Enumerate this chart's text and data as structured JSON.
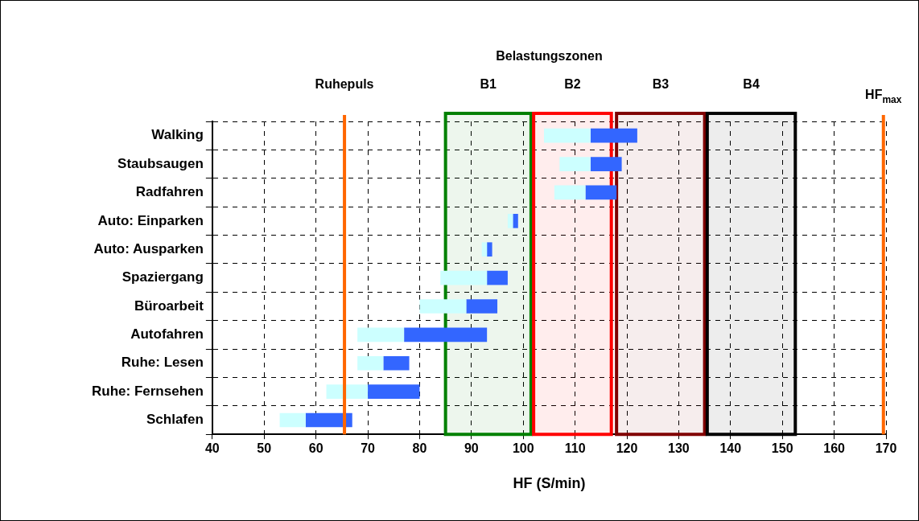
{
  "chart_data": {
    "type": "bar",
    "orientation": "horizontal",
    "title": "Belastungszonen",
    "xlabel": "HF (S/min)",
    "categories": [
      "Walking",
      "Staubsaugen",
      "Radfahren",
      "Auto: Einparken",
      "Auto: Ausparken",
      "Spaziergang",
      "Büroarbeit",
      "Autofahren",
      "Ruhe: Lesen",
      "Ruhe: Fernsehen",
      "Schlafen"
    ],
    "series": [
      {
        "color": "#ccffff",
        "base": [
          104,
          107,
          106,
          97,
          92,
          84,
          80,
          68,
          68,
          62,
          53
        ],
        "values": [
          9,
          6,
          6,
          1,
          1,
          9,
          9,
          9,
          5,
          8,
          5
        ]
      },
      {
        "color": "#3366ff",
        "base": [
          113,
          113,
          112,
          98,
          93,
          93,
          89,
          77,
          73,
          70,
          58
        ],
        "values": [
          9,
          6,
          6,
          1,
          1,
          4,
          6,
          16,
          5,
          10,
          9
        ]
      }
    ],
    "xlim": [
      40,
      170
    ],
    "xticks": [
      40,
      50,
      60,
      70,
      80,
      90,
      100,
      110,
      120,
      130,
      140,
      150,
      160,
      170
    ],
    "grid": true,
    "legend": false,
    "ref_lines": [
      {
        "axis": "x",
        "value": 65.5,
        "label": "Ruhepuls",
        "color": "#ff6600"
      },
      {
        "axis": "x",
        "value": 169.5,
        "label": "HF$_{max}$",
        "color": "#ff6600"
      }
    ],
    "bands": [
      {
        "axis": "x",
        "from": 85,
        "to": 101.5,
        "label": "B1",
        "color": "#008000"
      },
      {
        "axis": "x",
        "from": 102,
        "to": 117,
        "label": "B2",
        "color": "#ff0000"
      },
      {
        "axis": "x",
        "from": 118,
        "to": 135,
        "label": "B3",
        "color": "#800000"
      },
      {
        "axis": "x",
        "from": 135.5,
        "to": 152.5,
        "label": "B4",
        "color": "#000000"
      }
    ]
  }
}
